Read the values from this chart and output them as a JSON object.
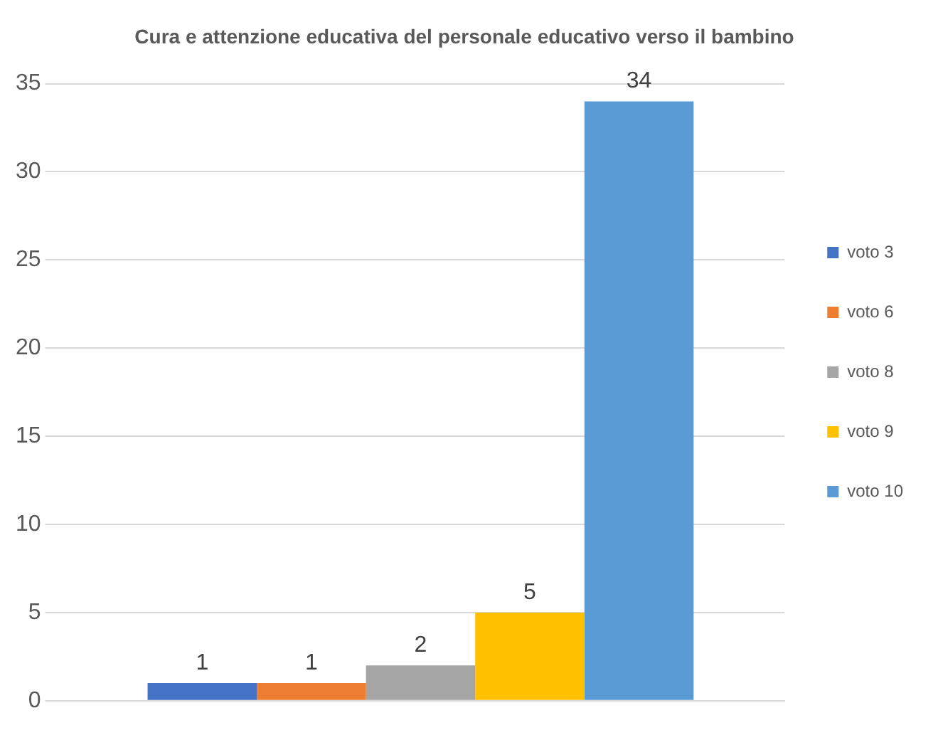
{
  "chart_data": {
    "type": "bar",
    "title": "Cura e attenzione educativa del personale educativo verso il bambino",
    "categories": [
      null
    ],
    "series": [
      {
        "name": "voto 3",
        "color": "#4472c4",
        "values": [
          1
        ]
      },
      {
        "name": "voto 6",
        "color": "#ed7d31",
        "values": [
          1
        ]
      },
      {
        "name": "voto 8",
        "color": "#a5a5a5",
        "values": [
          2
        ]
      },
      {
        "name": "voto 9",
        "color": "#ffc000",
        "values": [
          5
        ]
      },
      {
        "name": "voto 10",
        "color": "#5b9bd5",
        "values": [
          34
        ]
      }
    ],
    "ylim": [
      0,
      35
    ],
    "yticks": [
      0,
      5,
      10,
      15,
      20,
      25,
      30,
      35
    ],
    "grid": "y",
    "legend": "right",
    "data_labels": true
  }
}
